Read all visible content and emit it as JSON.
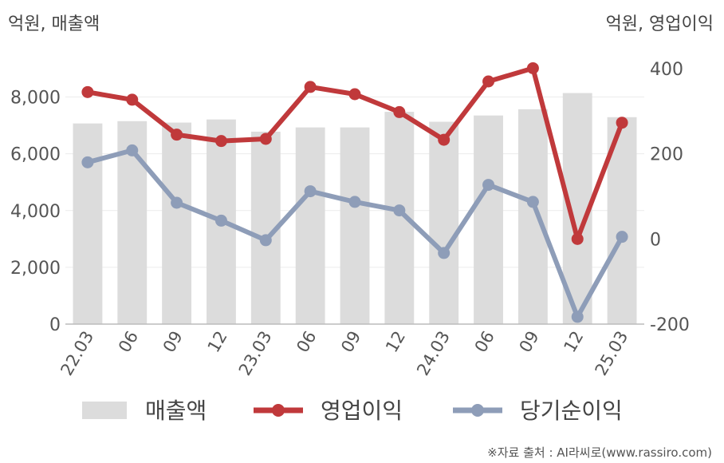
{
  "chart_data": {
    "type": "bar+line",
    "categories": [
      "22.03",
      "06",
      "09",
      "12",
      "23.03",
      "06",
      "09",
      "12",
      "24.03",
      "06",
      "09",
      "12",
      "25.03"
    ],
    "left_unit": "억원, 매출액",
    "right_unit": "억원, 영업이익",
    "left_axis": {
      "range": [
        0,
        9000
      ],
      "ticks": [
        0,
        2000,
        4000,
        6000,
        8000
      ],
      "tick_labels": [
        "0",
        "2,000",
        "4,000",
        "6,000",
        "8,000"
      ]
    },
    "right_axis": {
      "range": [
        -200,
        400
      ],
      "ticks": [
        -200,
        0,
        200,
        400
      ],
      "tick_labels": [
        "-200",
        "0",
        "200",
        "400"
      ]
    },
    "series": [
      {
        "name": "매출액",
        "type": "bar",
        "axis": "left",
        "color": "#dcdcdc",
        "values": [
          7070,
          7150,
          7100,
          7210,
          6780,
          6930,
          6930,
          7480,
          7130,
          7350,
          7570,
          8140,
          7290
        ]
      },
      {
        "name": "영업이익",
        "type": "line",
        "axis": "right",
        "color": "#c0393b",
        "values": [
          345,
          327,
          245,
          230,
          235,
          357,
          340,
          298,
          233,
          370,
          401,
          0,
          273
        ]
      },
      {
        "name": "당기순이익",
        "type": "line",
        "axis": "right",
        "color": "#8e9db8",
        "values": [
          180,
          208,
          85,
          43,
          -3,
          112,
          87,
          67,
          -33,
          127,
          87,
          -183,
          5
        ]
      }
    ],
    "legend": {
      "placement": "bottom"
    },
    "grid": true
  },
  "source": "※자료 출처 : AI라씨로(www.rassiro.com)"
}
